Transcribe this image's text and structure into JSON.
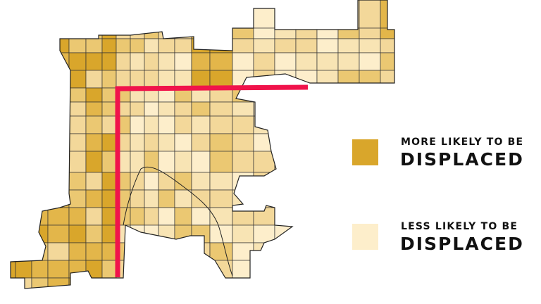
{
  "map": {
    "colors": {
      "more_likely": "#d9a62b",
      "less_likely": "#fdeecb",
      "highlight_line": "#f0134b",
      "boundary": "#222222"
    }
  },
  "legend": {
    "items": [
      {
        "line1": "MORE LIKELY TO BE",
        "line2": "DISPLACED",
        "color": "#d9a62b"
      },
      {
        "line1": "LESS LIKELY TO BE",
        "line2": "DISPLACED",
        "color": "#fdeecb"
      }
    ]
  }
}
